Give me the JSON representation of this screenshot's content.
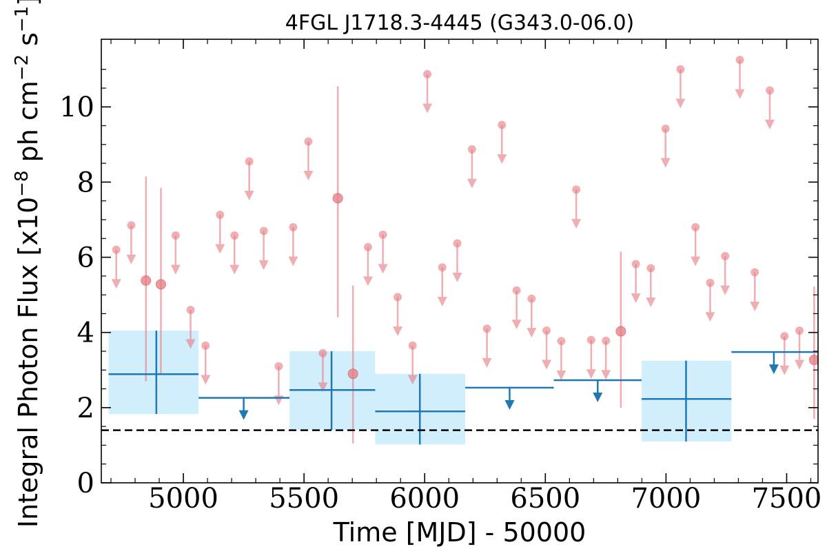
{
  "chart_data": {
    "type": "scatter",
    "title": "4FGL J1718.3-4445 (G343.0-06.0)",
    "xlabel": "Time [MJD] - 50000",
    "ylabel": {
      "prefix": "Integral Photon Flux [x10",
      "exp1": "−8",
      "mid": " ph cm",
      "exp2": "−2",
      "mid2": " s",
      "exp3": "−1",
      "suffix": "]"
    },
    "xlim": [
      4660,
      7630
    ],
    "ylim": [
      0,
      11.8
    ],
    "xticks": [
      5000,
      5500,
      6000,
      6500,
      7000,
      7500
    ],
    "xtick_labels": [
      "5000",
      "5500",
      "6000",
      "6500",
      "7000",
      "7500"
    ],
    "yticks": [
      0,
      2,
      4,
      6,
      8,
      10
    ],
    "ytick_labels": [
      "0",
      "2",
      "4",
      "6",
      "8",
      "10"
    ],
    "reference_line": 1.4,
    "colors": {
      "fine": "#e67a80",
      "coarse": "#1f77b4",
      "band": "#d0eefb",
      "reference": "#000000"
    },
    "series": [
      {
        "kind": "fine_bins_upper_limits",
        "points": [
          {
            "x": 4722,
            "y": 6.2
          },
          {
            "x": 4784,
            "y": 6.85
          },
          {
            "x": 4968,
            "y": 6.58
          },
          {
            "x": 5030,
            "y": 4.6
          },
          {
            "x": 5092,
            "y": 3.65
          },
          {
            "x": 5152,
            "y": 7.13
          },
          {
            "x": 5212,
            "y": 6.58
          },
          {
            "x": 5273,
            "y": 8.55
          },
          {
            "x": 5333,
            "y": 6.7
          },
          {
            "x": 5395,
            "y": 3.1
          },
          {
            "x": 5455,
            "y": 6.8
          },
          {
            "x": 5518,
            "y": 9.08
          },
          {
            "x": 5578,
            "y": 3.45
          },
          {
            "x": 5765,
            "y": 6.27
          },
          {
            "x": 5827,
            "y": 6.6
          },
          {
            "x": 5888,
            "y": 4.94
          },
          {
            "x": 5950,
            "y": 3.65
          },
          {
            "x": 6011,
            "y": 10.87
          },
          {
            "x": 6073,
            "y": 5.73
          },
          {
            "x": 6135,
            "y": 6.37
          },
          {
            "x": 6196,
            "y": 8.87
          },
          {
            "x": 6258,
            "y": 4.1
          },
          {
            "x": 6320,
            "y": 9.52
          },
          {
            "x": 6381,
            "y": 5.12
          },
          {
            "x": 6443,
            "y": 4.9
          },
          {
            "x": 6505,
            "y": 4.05
          },
          {
            "x": 6566,
            "y": 3.77
          },
          {
            "x": 6628,
            "y": 7.8
          },
          {
            "x": 6690,
            "y": 3.8
          },
          {
            "x": 6751,
            "y": 3.78
          },
          {
            "x": 6875,
            "y": 5.82
          },
          {
            "x": 6937,
            "y": 5.71
          },
          {
            "x": 6998,
            "y": 9.42
          },
          {
            "x": 7060,
            "y": 11.0
          },
          {
            "x": 7122,
            "y": 6.8
          },
          {
            "x": 7183,
            "y": 5.32
          },
          {
            "x": 7245,
            "y": 6.03
          },
          {
            "x": 7306,
            "y": 11.25
          },
          {
            "x": 7368,
            "y": 5.6
          },
          {
            "x": 7430,
            "y": 10.44
          },
          {
            "x": 7491,
            "y": 3.9
          },
          {
            "x": 7553,
            "y": 4.05
          }
        ]
      },
      {
        "kind": "fine_bins_detections",
        "points": [
          {
            "x": 4845,
            "y": 5.38,
            "lo": 2.7,
            "hi": 8.15
          },
          {
            "x": 4907,
            "y": 5.28,
            "lo": 2.9,
            "hi": 7.85
          },
          {
            "x": 5640,
            "y": 7.57,
            "lo": 4.4,
            "hi": 10.55
          },
          {
            "x": 5703,
            "y": 2.9,
            "lo": 1.05,
            "hi": 5.25
          },
          {
            "x": 6813,
            "y": 4.03,
            "lo": 2.0,
            "hi": 6.15
          },
          {
            "x": 7614,
            "y": 3.27,
            "lo": 1.7,
            "hi": 5.22
          }
        ]
      },
      {
        "kind": "coarse_bins_detections",
        "points": [
          {
            "x": 4888,
            "x0": 4690,
            "x1": 5063,
            "y": 2.89,
            "lo": 1.83,
            "hi": 4.05
          },
          {
            "x": 5614,
            "x0": 5440,
            "x1": 5795,
            "y": 2.47,
            "lo": 1.41,
            "hi": 3.5
          },
          {
            "x": 5980,
            "x0": 5795,
            "x1": 6168,
            "y": 1.9,
            "lo": 1.02,
            "hi": 2.9
          },
          {
            "x": 7083,
            "x0": 6899,
            "x1": 7271,
            "y": 2.23,
            "lo": 1.1,
            "hi": 3.25
          }
        ]
      },
      {
        "kind": "coarse_bins_upper_limits",
        "points": [
          {
            "x": 5250,
            "x0": 5063,
            "x1": 5440,
            "y": 2.26
          },
          {
            "x": 6352,
            "x0": 6168,
            "x1": 6535,
            "y": 2.53
          },
          {
            "x": 6717,
            "x0": 6535,
            "x1": 6899,
            "y": 2.73
          },
          {
            "x": 7447,
            "x0": 7271,
            "x1": 7644,
            "y": 3.48
          }
        ]
      }
    ]
  }
}
